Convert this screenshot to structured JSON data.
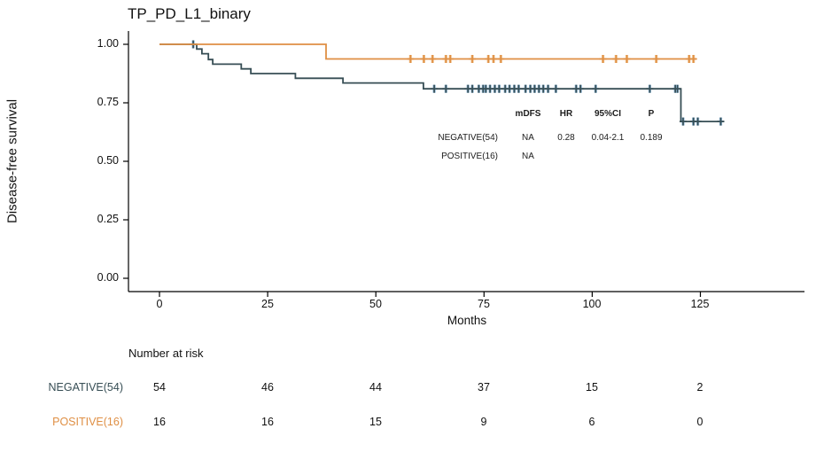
{
  "figure": {
    "title": "TP_PD_L1_binary"
  },
  "chart_data": {
    "type": "line",
    "subtype": "kaplan-meier-step-survival",
    "title": "TP_PD_L1_binary",
    "xlabel": "Months",
    "ylabel": "Disease-free survival",
    "xlim": [
      0,
      149
    ],
    "ylim": [
      0,
      1
    ],
    "grid": false,
    "legend_position": "none",
    "axis_color": "#000000",
    "xticks": [
      0,
      25,
      50,
      75,
      100,
      125
    ],
    "yticks": [
      0,
      0.25,
      0.5,
      0.75,
      1
    ],
    "series": [
      {
        "name": "NEGATIVE(54)",
        "color": "#374E55",
        "censor_halo": "#8FB8D8",
        "steps": [
          [
            0,
            1.0
          ],
          [
            8.6,
            0.98
          ],
          [
            9.8,
            0.96
          ],
          [
            11.3,
            0.935
          ],
          [
            12.3,
            0.915
          ],
          [
            18.9,
            0.895
          ],
          [
            21.1,
            0.875
          ],
          [
            31.4,
            0.855
          ],
          [
            42.4,
            0.835
          ],
          [
            61,
            0.81
          ],
          [
            120.5,
            0.67
          ]
        ],
        "end_month": 130.5,
        "censor_months": [
          7.8,
          63.5,
          66.2,
          71.3,
          72.3,
          73.8,
          74.8,
          75.4,
          76.4,
          77.5,
          78.5,
          79.9,
          80.9,
          82,
          83,
          84.6,
          85.7,
          86.7,
          87.7,
          88.7,
          89.8,
          91.6,
          96.3,
          97.3,
          100.8,
          113.3,
          119.2,
          119.7,
          121,
          123.4,
          124.4,
          129.7
        ]
      },
      {
        "name": "POSITIVE(16)",
        "color": "#DF8F44",
        "censor_halo": "#F2C795",
        "steps": [
          [
            0,
            1.0
          ],
          [
            38.5,
            0.9375
          ]
        ],
        "end_month": 124,
        "censor_months": [
          58,
          61.1,
          63.1,
          66.2,
          67.2,
          72.3,
          76,
          77.2,
          78.9,
          102.5,
          105.5,
          108,
          114.8,
          122.4,
          123.4
        ]
      }
    ]
  },
  "axis": {
    "y_title": "Disease-free survival",
    "x_title": "Months",
    "y_labels": [
      "1.00",
      "0.75",
      "0.50",
      "0.25",
      "0.00"
    ],
    "x_labels": [
      "0",
      "25",
      "50",
      "75",
      "100",
      "125"
    ]
  },
  "stats_table": {
    "headers": {
      "mdfs": "mDFS",
      "hr": "HR",
      "ci": "95%CI",
      "p": "P"
    },
    "rows": [
      {
        "label": "NEGATIVE(54)",
        "mdfs": "NA",
        "hr": "0.28",
        "ci": "0.04-2.1",
        "p": "0.189"
      },
      {
        "label": "POSITIVE(16)",
        "mdfs": "NA",
        "hr": "",
        "ci": "",
        "p": ""
      }
    ]
  },
  "risk_table": {
    "heading": "Number at risk",
    "rows": [
      {
        "label": "NEGATIVE(54)",
        "color": "#374E55",
        "values": [
          "54",
          "46",
          "44",
          "37",
          "15",
          "2"
        ]
      },
      {
        "label": "POSITIVE(16)",
        "color": "#DF8F44",
        "values": [
          "16",
          "16",
          "15",
          "9",
          "6",
          "0"
        ]
      }
    ]
  }
}
